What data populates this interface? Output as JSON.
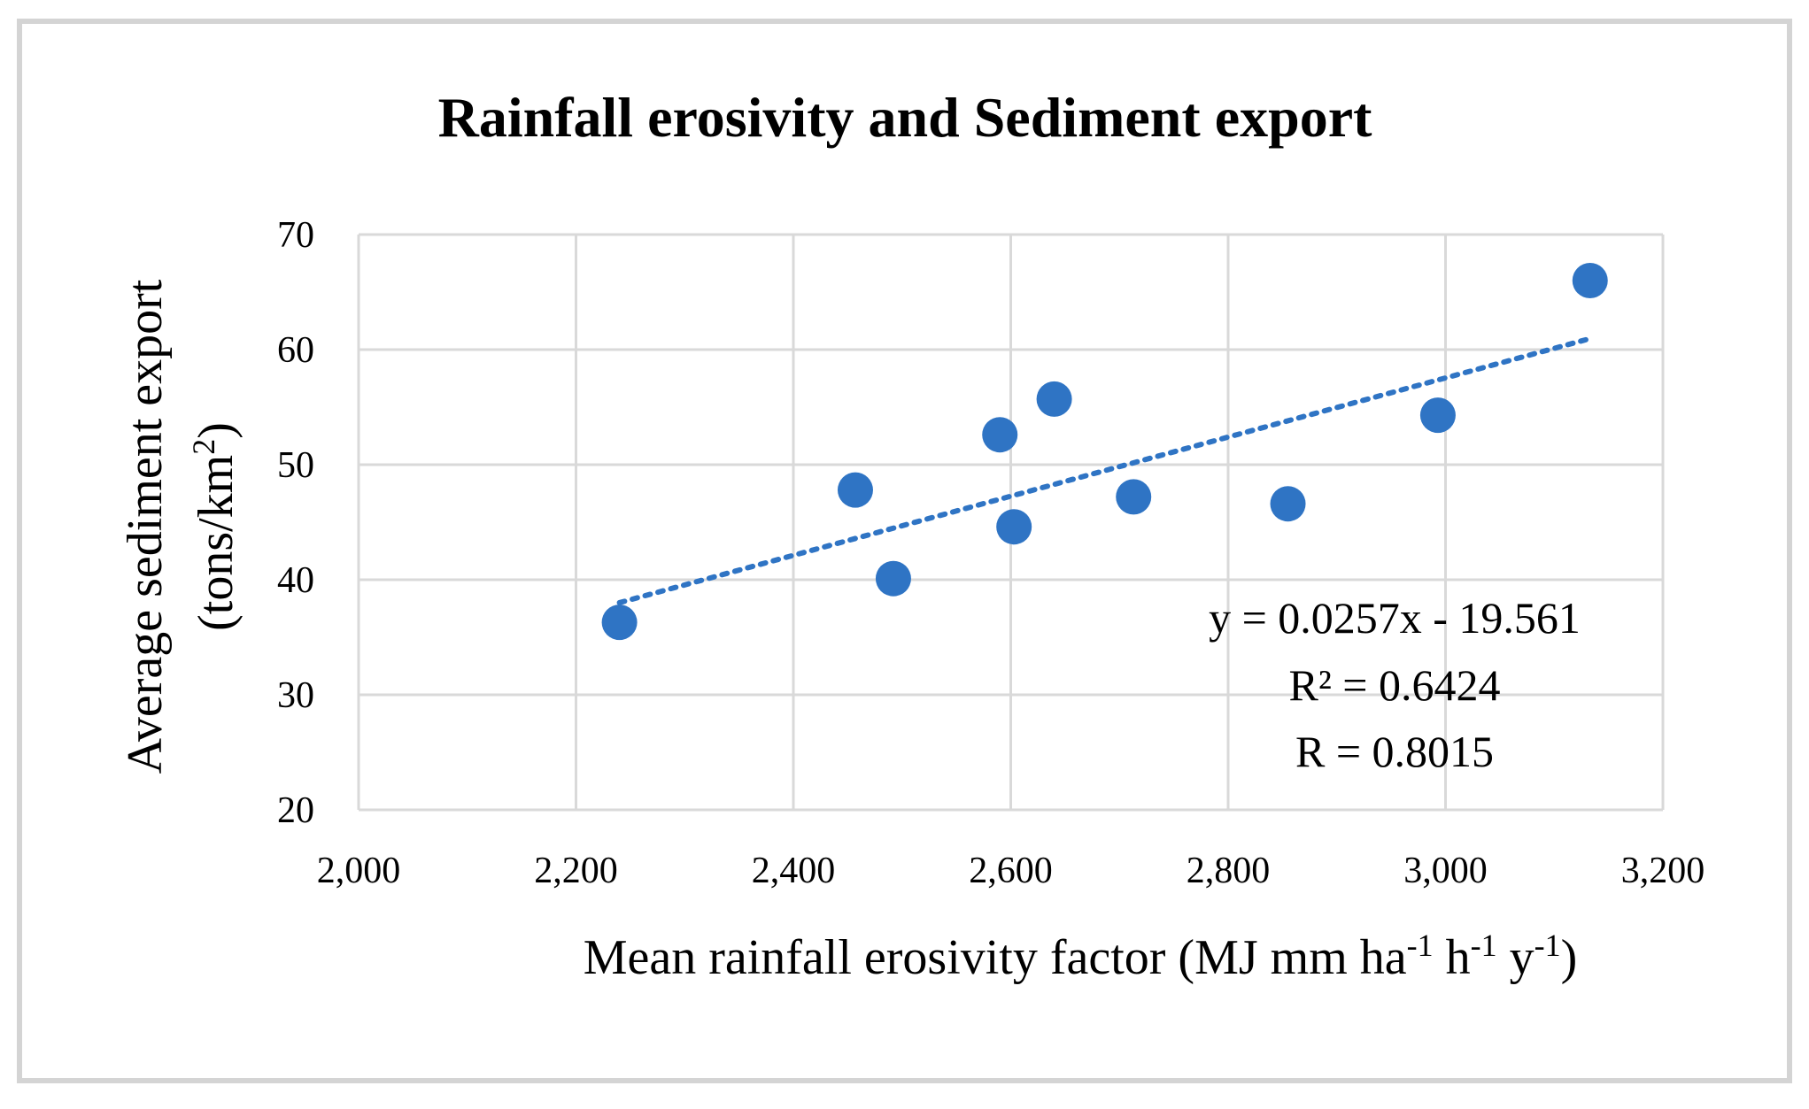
{
  "chart_data": {
    "type": "scatter",
    "title": "Rainfall erosivity and Sediment export",
    "xlabel": {
      "main": "Mean rainfall erosivity factor (MJ mm ha",
      "sup1": "-1",
      "mid1": " h",
      "sup2": "-1",
      "mid2": " y",
      "sup3": "-1",
      "end": ")"
    },
    "ylabel": {
      "line1": "Average sediment export",
      "line2_main": "(tons/km",
      "line2_sup": "2",
      "line2_end": ")"
    },
    "xlim": [
      2000,
      3200
    ],
    "ylim": [
      20,
      70
    ],
    "x_ticks": [
      2000,
      2200,
      2400,
      2600,
      2800,
      3000,
      3200
    ],
    "x_tick_labels": [
      "2,000",
      "2,200",
      "2,400",
      "2,600",
      "2,800",
      "3,000",
      "3,200"
    ],
    "y_ticks": [
      20,
      30,
      40,
      50,
      60,
      70
    ],
    "y_tick_labels": [
      "20",
      "30",
      "40",
      "50",
      "60",
      "70"
    ],
    "grid": true,
    "series": [
      {
        "x": [
          2240,
          2457,
          2492,
          2590,
          2603,
          2640,
          2713,
          2855,
          2993,
          3133
        ],
        "y": [
          36.3,
          47.8,
          40.1,
          52.6,
          44.6,
          55.7,
          47.2,
          46.6,
          54.3,
          66.0
        ],
        "color": "#2f74c4"
      }
    ],
    "trendline": {
      "style": "dotted",
      "color": "#2f74c4",
      "slope": 0.0257,
      "intercept": -19.561,
      "x_range": [
        2240,
        3133
      ]
    },
    "annotations": [
      "y = 0.0257x - 19.561",
      "R² = 0.6424",
      "R = 0.8015"
    ]
  }
}
